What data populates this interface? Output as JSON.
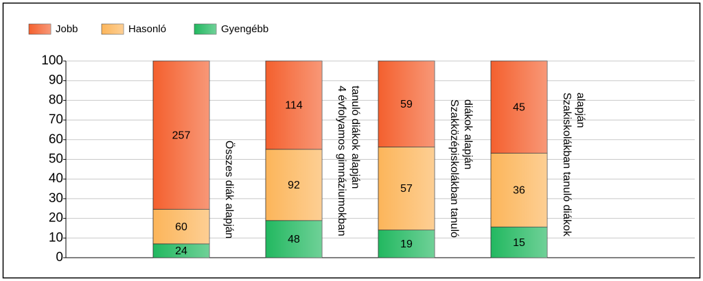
{
  "chart_data": {
    "type": "bar",
    "stack": "percent",
    "categories": [
      [
        "Összes diák alapján"
      ],
      [
        "4 évfolyamos gimnáziumokban",
        "tanuló diákok alapján"
      ],
      [
        "Szakközépiskolákban tanuló",
        "diákok alapján"
      ],
      [
        "Szakiskolákban tanuló diákok",
        "alapján"
      ]
    ],
    "series": [
      {
        "name": "Gyengébb",
        "color": "#22b860",
        "values": [
          24,
          48,
          19,
          15
        ]
      },
      {
        "name": "Hasonló",
        "color": "#fcb55a",
        "values": [
          60,
          92,
          57,
          36
        ]
      },
      {
        "name": "Jobb",
        "color": "#f4602e",
        "values": [
          257,
          114,
          59,
          45
        ]
      }
    ],
    "legend_order": [
      2,
      1,
      0
    ],
    "ylim": [
      0,
      100
    ],
    "yticks": [
      0,
      10,
      20,
      30,
      40,
      50,
      60,
      70,
      80,
      90,
      100
    ],
    "grid": true
  }
}
